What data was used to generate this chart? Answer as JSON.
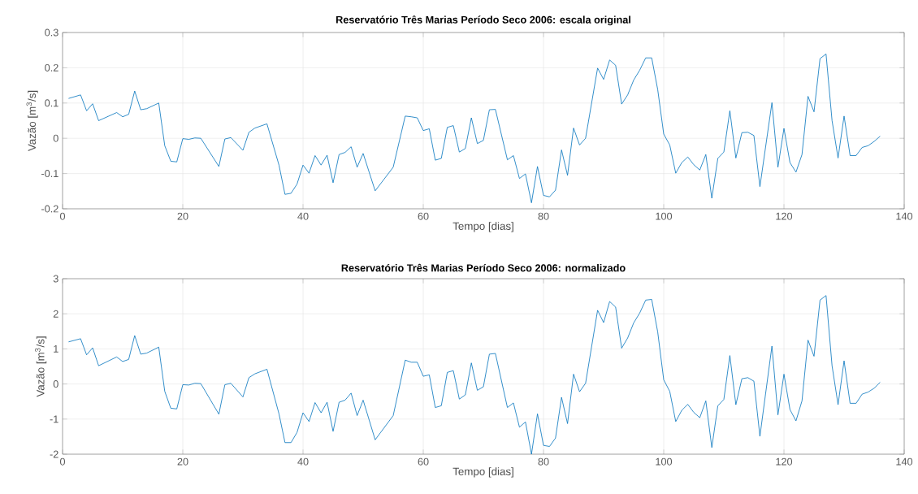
{
  "chart_data": [
    {
      "type": "line",
      "title": "Reservatório Três Marias Período Seco 2006: escala original",
      "xlabel": "Tempo [dias]",
      "ylabel": "Vazão [m$^{3}$/s]",
      "xlim": [
        0,
        140
      ],
      "ylim": [
        -0.2,
        0.3
      ],
      "xticks": [
        0,
        20,
        40,
        60,
        80,
        100,
        120,
        140
      ],
      "yticks": [
        -0.2,
        -0.1,
        0,
        0.1,
        0.2,
        0.3
      ],
      "grid": true,
      "color": "#0072bd",
      "x": [
        1,
        3,
        4,
        5,
        6,
        9,
        10,
        11,
        12,
        13,
        14,
        16,
        17,
        18,
        19,
        20,
        21,
        22,
        23,
        26,
        27,
        28,
        30,
        31,
        32,
        34,
        36,
        37,
        38,
        39,
        40,
        41,
        42,
        43,
        44,
        45,
        46,
        47,
        48,
        49,
        50,
        52,
        55,
        57,
        58,
        59,
        60,
        61,
        62,
        63,
        64,
        65,
        66,
        67,
        68,
        69,
        70,
        71,
        72,
        74,
        75,
        76,
        77,
        78,
        79,
        80,
        81,
        82,
        83,
        84,
        85,
        86,
        87,
        89,
        90,
        91,
        92,
        93,
        94,
        95,
        96,
        97,
        98,
        99,
        100,
        101,
        102,
        103,
        104,
        105,
        106,
        107,
        108,
        109,
        110,
        111,
        112,
        113,
        114,
        115,
        116,
        118,
        119,
        120,
        121,
        122,
        123,
        124,
        125,
        126,
        127,
        128,
        129,
        130,
        131,
        132,
        133,
        134,
        135,
        136
      ],
      "values": [
        0.113,
        0.123,
        0.078,
        0.098,
        0.05,
        0.073,
        0.061,
        0.068,
        0.134,
        0.081,
        0.084,
        0.1,
        -0.021,
        -0.065,
        -0.067,
        -0.001,
        -0.003,
        0.001,
        0.0,
        -0.08,
        -0.002,
        0.002,
        -0.034,
        0.017,
        0.029,
        0.041,
        -0.076,
        -0.159,
        -0.156,
        -0.13,
        -0.076,
        -0.099,
        -0.049,
        -0.076,
        -0.048,
        -0.126,
        -0.046,
        -0.04,
        -0.024,
        -0.082,
        -0.043,
        -0.149,
        -0.082,
        0.063,
        0.061,
        0.058,
        0.022,
        0.027,
        -0.062,
        -0.057,
        0.031,
        0.036,
        -0.039,
        -0.029,
        0.058,
        -0.015,
        -0.006,
        0.081,
        0.082,
        -0.061,
        -0.049,
        -0.114,
        -0.101,
        -0.183,
        -0.08,
        -0.162,
        -0.166,
        -0.147,
        -0.033,
        -0.105,
        0.029,
        -0.019,
        0.0,
        0.199,
        0.167,
        0.222,
        0.207,
        0.097,
        0.123,
        0.165,
        0.193,
        0.228,
        0.228,
        0.138,
        0.012,
        -0.019,
        -0.099,
        -0.069,
        -0.053,
        -0.075,
        -0.09,
        -0.046,
        -0.17,
        -0.057,
        -0.039,
        0.078,
        -0.056,
        0.016,
        0.017,
        0.008,
        -0.137,
        0.101,
        -0.082,
        0.028,
        -0.069,
        -0.096,
        -0.046,
        0.119,
        0.075,
        0.226,
        0.239,
        0.05,
        -0.056,
        0.063,
        -0.049,
        -0.049,
        -0.026,
        -0.021,
        -0.009,
        0.006
      ]
    },
    {
      "type": "line",
      "title": "Reservatório Três Marias Período Seco 2006: normalizado",
      "xlabel": "Tempo [dias]",
      "ylabel": "Vazão [m$^{3}$/s]",
      "xlim": [
        0,
        140
      ],
      "ylim": [
        -2,
        3
      ],
      "xticks": [
        0,
        20,
        40,
        60,
        80,
        100,
        120,
        140
      ],
      "yticks": [
        -2,
        -1,
        0,
        1,
        2,
        3
      ],
      "grid": true,
      "color": "#0072bd",
      "x": [
        1,
        3,
        4,
        5,
        6,
        9,
        10,
        11,
        12,
        13,
        14,
        16,
        17,
        18,
        19,
        20,
        21,
        22,
        23,
        26,
        27,
        28,
        30,
        31,
        32,
        34,
        36,
        37,
        38,
        39,
        40,
        41,
        42,
        43,
        44,
        45,
        46,
        47,
        48,
        49,
        50,
        52,
        55,
        57,
        58,
        59,
        60,
        61,
        62,
        63,
        64,
        65,
        66,
        67,
        68,
        69,
        70,
        71,
        72,
        74,
        75,
        76,
        77,
        78,
        79,
        80,
        81,
        82,
        83,
        84,
        85,
        86,
        87,
        89,
        90,
        91,
        92,
        93,
        94,
        95,
        96,
        97,
        98,
        99,
        100,
        101,
        102,
        103,
        104,
        105,
        106,
        107,
        108,
        109,
        110,
        111,
        112,
        113,
        114,
        115,
        116,
        118,
        119,
        120,
        121,
        122,
        123,
        124,
        125,
        126,
        127,
        128,
        129,
        130,
        131,
        132,
        133,
        134,
        135,
        136
      ],
      "values": [
        1.2,
        1.29,
        0.83,
        1.03,
        0.52,
        0.77,
        0.64,
        0.7,
        1.38,
        0.85,
        0.88,
        1.05,
        -0.21,
        -0.69,
        -0.71,
        -0.02,
        -0.03,
        0.02,
        0.01,
        -0.86,
        -0.02,
        0.02,
        -0.37,
        0.18,
        0.29,
        0.42,
        -0.85,
        -1.67,
        -1.67,
        -1.38,
        -0.82,
        -1.07,
        -0.53,
        -0.82,
        -0.52,
        -1.35,
        -0.52,
        -0.46,
        -0.26,
        -0.9,
        -0.46,
        -1.59,
        -0.9,
        0.68,
        0.62,
        0.62,
        0.22,
        0.26,
        -0.67,
        -0.62,
        0.33,
        0.38,
        -0.43,
        -0.31,
        0.6,
        -0.18,
        -0.08,
        0.85,
        0.87,
        -0.67,
        -0.54,
        -1.23,
        -1.08,
        -2.0,
        -0.85,
        -1.75,
        -1.78,
        -1.54,
        -0.38,
        -1.13,
        0.28,
        -0.22,
        0.02,
        2.1,
        1.75,
        2.35,
        2.19,
        1.02,
        1.31,
        1.74,
        2.02,
        2.39,
        2.41,
        1.48,
        0.12,
        -0.21,
        -1.07,
        -0.75,
        -0.58,
        -0.81,
        -0.96,
        -0.48,
        -1.81,
        -0.62,
        -0.44,
        0.81,
        -0.59,
        0.15,
        0.18,
        0.08,
        -1.49,
        1.08,
        -0.88,
        0.28,
        -0.73,
        -1.05,
        -0.48,
        1.25,
        0.79,
        2.39,
        2.52,
        0.52,
        -0.59,
        0.66,
        -0.55,
        -0.55,
        -0.29,
        -0.23,
        -0.12,
        0.05
      ]
    }
  ]
}
